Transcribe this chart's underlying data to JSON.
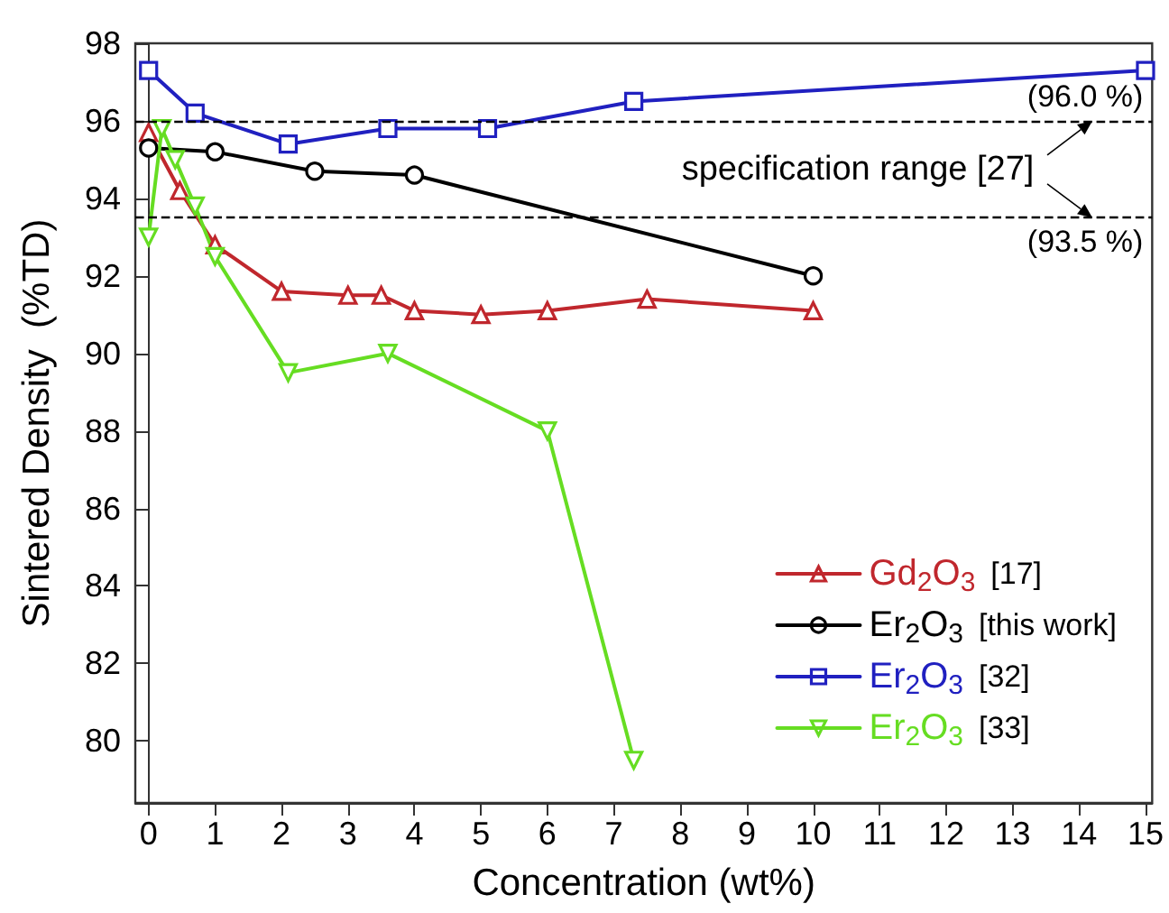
{
  "chart_data": {
    "type": "line",
    "xlabel": "Concentration (wt%)",
    "ylabel": "Sintered Density  (%TD)",
    "xlim": [
      -0.2,
      15.1
    ],
    "xticks": [
      0,
      1,
      2,
      3,
      4,
      5,
      6,
      7,
      8,
      9,
      10,
      11,
      12,
      13,
      14,
      15
    ],
    "ylim": [
      78.4,
      98
    ],
    "yticks": [
      80,
      82,
      84,
      86,
      88,
      90,
      92,
      94,
      96,
      98
    ],
    "grid": false,
    "legend": "bottom right",
    "series": [
      {
        "name": "Gd$_{2}$O$_{3}$ [17]",
        "color": "#c0272d",
        "marker": "triangle",
        "x": [
          0,
          0.47,
          1,
          2,
          3,
          3.5,
          4,
          5,
          6,
          7.5,
          10
        ],
        "values": [
          95.7,
          94.2,
          92.8,
          91.6,
          91.5,
          91.5,
          91.1,
          91.0,
          91.1,
          91.4,
          91.1
        ]
      },
      {
        "name": "Er$_{2}$O$_{3}$ [this work]",
        "color": "#000000",
        "marker": "circle",
        "x": [
          0,
          1,
          2.5,
          4,
          10
        ],
        "values": [
          95.3,
          95.2,
          94.7,
          94.6,
          92.0
        ]
      },
      {
        "name": "Er$_{2}$O$_{3}$ [32]",
        "color": "#2020c0",
        "marker": "square",
        "x": [
          0,
          0.7,
          2.1,
          3.6,
          5.1,
          7.3,
          15
        ],
        "values": [
          97.3,
          96.2,
          95.4,
          95.8,
          95.8,
          96.5,
          97.3
        ]
      },
      {
        "name": "Er$_{2}$O$_{3}$ [33]",
        "color": "#66dd22",
        "marker": "triangle-down",
        "x": [
          0,
          0.2,
          0.4,
          0.7,
          1,
          2.1,
          3.6,
          6,
          7.3
        ],
        "values": [
          93.0,
          95.8,
          95.0,
          93.8,
          92.5,
          89.5,
          90.0,
          88.0,
          79.5
        ]
      }
    ],
    "ref_lines": [
      {
        "axis": "y",
        "value": 96.0,
        "label": "(96.0 %)",
        "line_style": "dashed",
        "color": "#000000"
      },
      {
        "axis": "y",
        "value": 93.5,
        "label": "(93.5 %)",
        "line_style": "dashed",
        "color": "#000000"
      }
    ],
    "annotations": [
      {
        "text": "specification range [27]",
        "x": 14.2,
        "y": 96.0
      }
    ]
  }
}
